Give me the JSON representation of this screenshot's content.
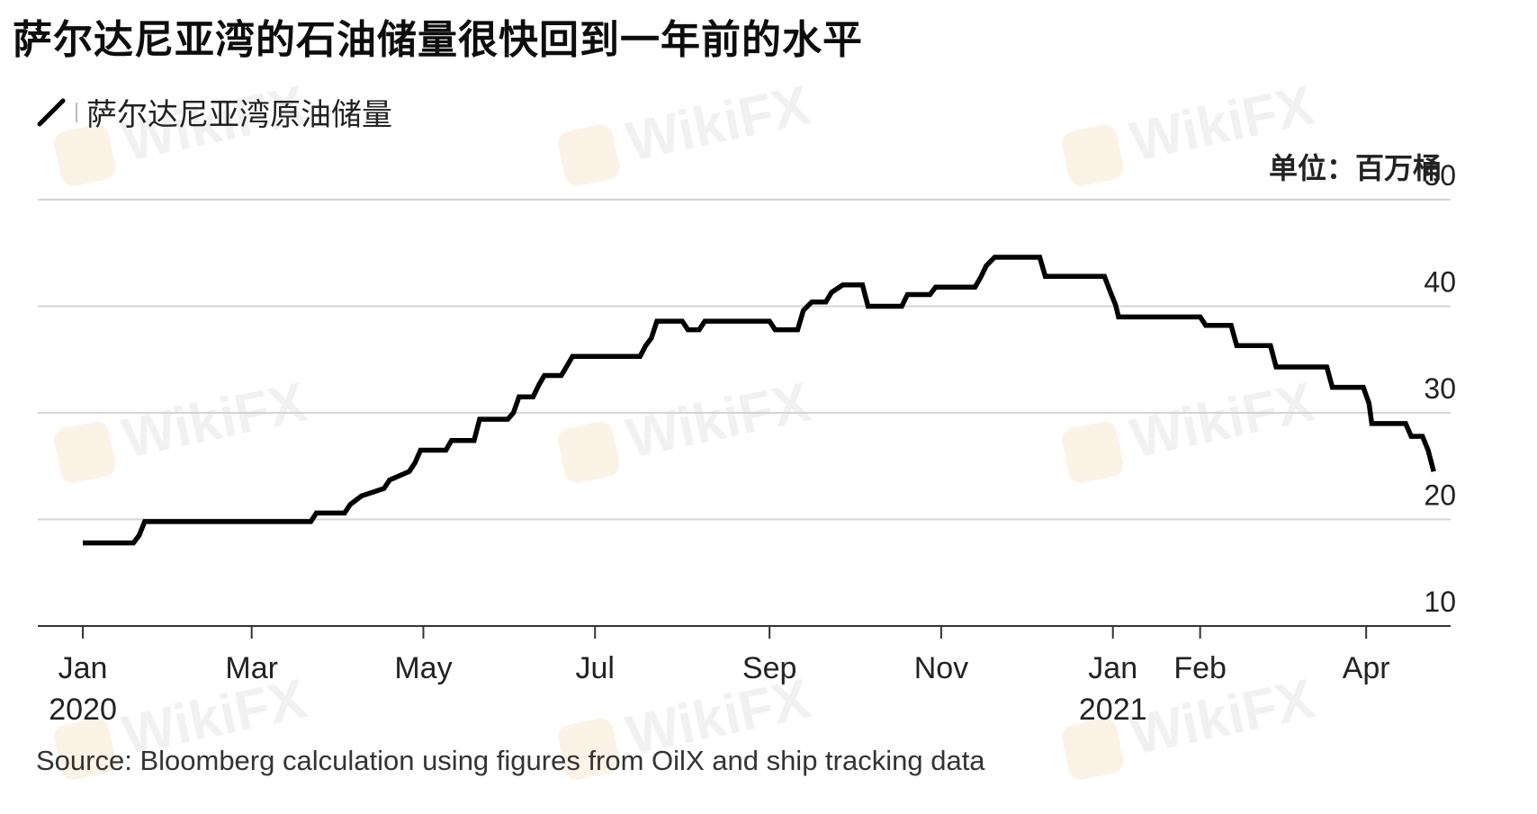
{
  "chart_data": {
    "type": "line",
    "title": "萨尔达尼亚湾的石油储量很快回到一年前的水平",
    "legend": "萨尔达尼亚湾原油储量",
    "unit_label": "单位：百万桶",
    "source": "Source: Bloomberg calculation using figures from OilX and ship tracking data",
    "x_tick_labels": [
      {
        "date": "2020-01-01",
        "label": "Jan",
        "sublabel": "2020"
      },
      {
        "date": "2020-03-01",
        "label": "Mar",
        "sublabel": ""
      },
      {
        "date": "2020-05-01",
        "label": "May",
        "sublabel": ""
      },
      {
        "date": "2020-07-01",
        "label": "Jul",
        "sublabel": ""
      },
      {
        "date": "2020-09-01",
        "label": "Sep",
        "sublabel": ""
      },
      {
        "date": "2020-11-01",
        "label": "Nov",
        "sublabel": ""
      },
      {
        "date": "2021-01-01",
        "label": "Jan",
        "sublabel": "2021"
      },
      {
        "date": "2021-02-01",
        "label": "Feb",
        "sublabel": ""
      },
      {
        "date": "2021-04-01",
        "label": "Apr",
        "sublabel": ""
      }
    ],
    "y_ticks": [
      10,
      20,
      30,
      40,
      50
    ],
    "ylim": [
      10,
      50
    ],
    "grid": true,
    "xlim": [
      "2019-12-16",
      "2021-05-01"
    ],
    "series": [
      {
        "name": "萨尔达尼亚湾原油储量",
        "color": "#000000",
        "points": [
          [
            "2020-01-01",
            17.8
          ],
          [
            "2020-01-19",
            17.8
          ],
          [
            "2020-01-21",
            18.5
          ],
          [
            "2020-01-23",
            19.8
          ],
          [
            "2020-03-22",
            19.8
          ],
          [
            "2020-03-24",
            20.6
          ],
          [
            "2020-04-03",
            20.6
          ],
          [
            "2020-04-05",
            21.4
          ],
          [
            "2020-04-09",
            22.2
          ],
          [
            "2020-04-17",
            22.9
          ],
          [
            "2020-04-19",
            23.7
          ],
          [
            "2020-04-26",
            24.5
          ],
          [
            "2020-04-28",
            25.3
          ],
          [
            "2020-04-30",
            26.5
          ],
          [
            "2020-05-09",
            26.5
          ],
          [
            "2020-05-11",
            27.4
          ],
          [
            "2020-05-19",
            27.4
          ],
          [
            "2020-05-21",
            29.4
          ],
          [
            "2020-05-31",
            29.4
          ],
          [
            "2020-06-02",
            30.0
          ],
          [
            "2020-06-04",
            31.5
          ],
          [
            "2020-06-09",
            31.5
          ],
          [
            "2020-06-11",
            32.6
          ],
          [
            "2020-06-13",
            33.5
          ],
          [
            "2020-06-19",
            33.5
          ],
          [
            "2020-06-21",
            34.4
          ],
          [
            "2020-06-23",
            35.3
          ],
          [
            "2020-07-17",
            35.3
          ],
          [
            "2020-07-19",
            36.3
          ],
          [
            "2020-07-21",
            37.0
          ],
          [
            "2020-07-23",
            38.6
          ],
          [
            "2020-08-01",
            38.6
          ],
          [
            "2020-08-03",
            37.8
          ],
          [
            "2020-08-07",
            37.8
          ],
          [
            "2020-08-09",
            38.6
          ],
          [
            "2020-09-01",
            38.6
          ],
          [
            "2020-09-03",
            37.8
          ],
          [
            "2020-09-11",
            37.8
          ],
          [
            "2020-09-13",
            39.6
          ],
          [
            "2020-09-16",
            40.4
          ],
          [
            "2020-09-21",
            40.4
          ],
          [
            "2020-09-23",
            41.3
          ],
          [
            "2020-09-27",
            42.0
          ],
          [
            "2020-10-04",
            42.0
          ],
          [
            "2020-10-06",
            40.0
          ],
          [
            "2020-10-18",
            40.0
          ],
          [
            "2020-10-20",
            41.1
          ],
          [
            "2020-10-28",
            41.1
          ],
          [
            "2020-10-30",
            41.8
          ],
          [
            "2020-11-13",
            41.8
          ],
          [
            "2020-11-15",
            42.7
          ],
          [
            "2020-11-17",
            43.8
          ],
          [
            "2020-11-20",
            44.6
          ],
          [
            "2020-12-06",
            44.6
          ],
          [
            "2020-12-08",
            42.8
          ],
          [
            "2020-12-29",
            42.8
          ],
          [
            "2020-12-31",
            41.4
          ],
          [
            "2021-01-02",
            40.1
          ],
          [
            "2021-01-03",
            39.0
          ],
          [
            "2021-02-01",
            39.0
          ],
          [
            "2021-02-03",
            38.2
          ],
          [
            "2021-02-12",
            38.2
          ],
          [
            "2021-02-14",
            36.3
          ],
          [
            "2021-02-26",
            36.3
          ],
          [
            "2021-02-28",
            34.3
          ],
          [
            "2021-03-18",
            34.3
          ],
          [
            "2021-03-20",
            32.4
          ],
          [
            "2021-03-31",
            32.4
          ],
          [
            "2021-04-02",
            30.9
          ],
          [
            "2021-04-03",
            29.0
          ],
          [
            "2021-04-15",
            29.0
          ],
          [
            "2021-04-17",
            27.8
          ],
          [
            "2021-04-21",
            27.8
          ],
          [
            "2021-04-23",
            26.5
          ],
          [
            "2021-04-25",
            24.5
          ]
        ]
      }
    ]
  },
  "watermark": {
    "text": "WikiFX"
  }
}
